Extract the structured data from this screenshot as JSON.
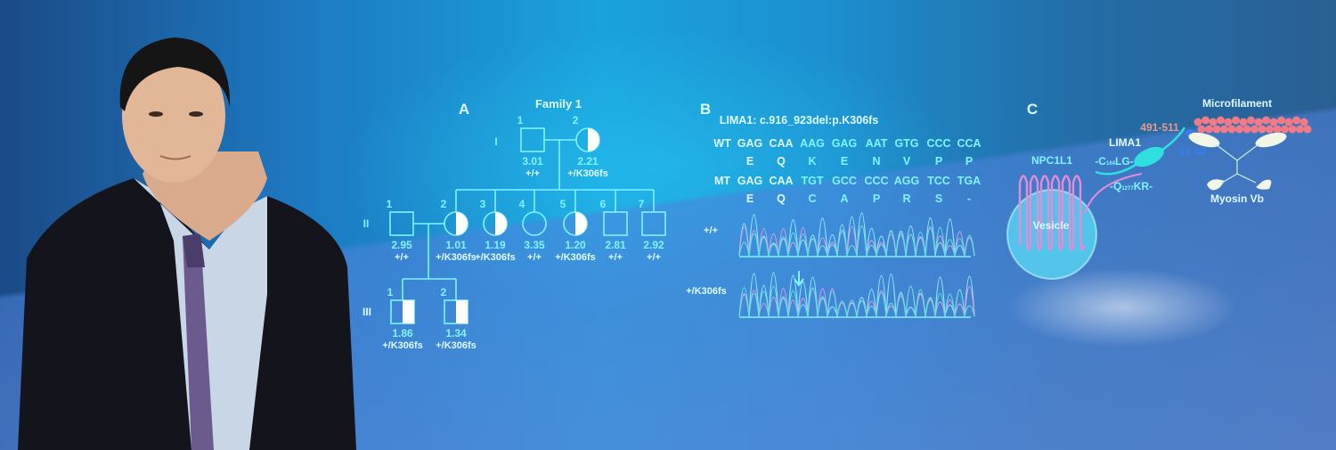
{
  "panel_a": {
    "letter": "A",
    "title": "Family 1",
    "generations": [
      "I",
      "II",
      "III"
    ],
    "gen1": [
      {
        "num": "1",
        "sex": "male",
        "affected": false,
        "value": "3.01",
        "genotype": "+/+"
      },
      {
        "num": "2",
        "sex": "female",
        "affected": true,
        "value": "2.21",
        "genotype": "+/K306fs"
      }
    ],
    "gen2": [
      {
        "num": "1",
        "sex": "male",
        "affected": false,
        "value": "2.95",
        "genotype": "+/+"
      },
      {
        "num": "2",
        "sex": "female",
        "affected": true,
        "value": "1.01",
        "genotype": "+/K306fs"
      },
      {
        "num": "3",
        "sex": "female",
        "affected": true,
        "value": "1.19",
        "genotype": "+/K306fs"
      },
      {
        "num": "4",
        "sex": "female",
        "affected": false,
        "value": "3.35",
        "genotype": "+/+"
      },
      {
        "num": "5",
        "sex": "female",
        "affected": true,
        "value": "1.20",
        "genotype": "+/K306fs"
      },
      {
        "num": "6",
        "sex": "male",
        "affected": false,
        "value": "2.81",
        "genotype": "+/+"
      },
      {
        "num": "7",
        "sex": "male",
        "affected": false,
        "value": "2.92",
        "genotype": "+/+"
      }
    ],
    "gen3": [
      {
        "num": "1",
        "sex": "male",
        "affected": true,
        "value": "1.86",
        "genotype": "+/K306fs"
      },
      {
        "num": "2",
        "sex": "male",
        "affected": true,
        "value": "1.34",
        "genotype": "+/K306fs"
      }
    ]
  },
  "panel_b": {
    "letter": "B",
    "title": "LIMA1: c.916_923del:p.K306fs",
    "wt_label": "WT",
    "wt_codons": [
      "GAG",
      "CAA",
      "AAG",
      "GAG",
      "AAT",
      "GTG",
      "CCC",
      "CCA"
    ],
    "wt_aa": [
      "E",
      "Q",
      "K",
      "E",
      "N",
      "V",
      "P",
      "P"
    ],
    "mt_label": "MT",
    "mt_codons": [
      "GAG",
      "CAA",
      "TGT",
      "GCC",
      "CCC",
      "AGG",
      "TCC",
      "TGA"
    ],
    "mt_aa": [
      "E",
      "Q",
      "C",
      "A",
      "P",
      "R",
      "S",
      "-"
    ],
    "trace1_label": "+/+",
    "trace2_label": "+/K306fs"
  },
  "panel_c": {
    "letter": "C",
    "npc1l1": "NPC1L1",
    "vesicle": "Vesicle",
    "lima1": "LIMA1",
    "motif1_pre": "-C",
    "motif1_sub": "164",
    "motif1_post": "LG-",
    "motif2_pre": "-Q",
    "motif2_sub": "1277",
    "motif2_post": "KR-",
    "range1": "491-511",
    "range2": "21-40",
    "microfilament": "Microfilament",
    "myosin": "Myosin Vb"
  },
  "colors": {
    "line": "#7ff4ff",
    "text": "#dffaff",
    "range1": "#e89a8a",
    "range2": "#3a7cf0",
    "membrane": "#e58bd8",
    "actin": "#f07a86"
  }
}
